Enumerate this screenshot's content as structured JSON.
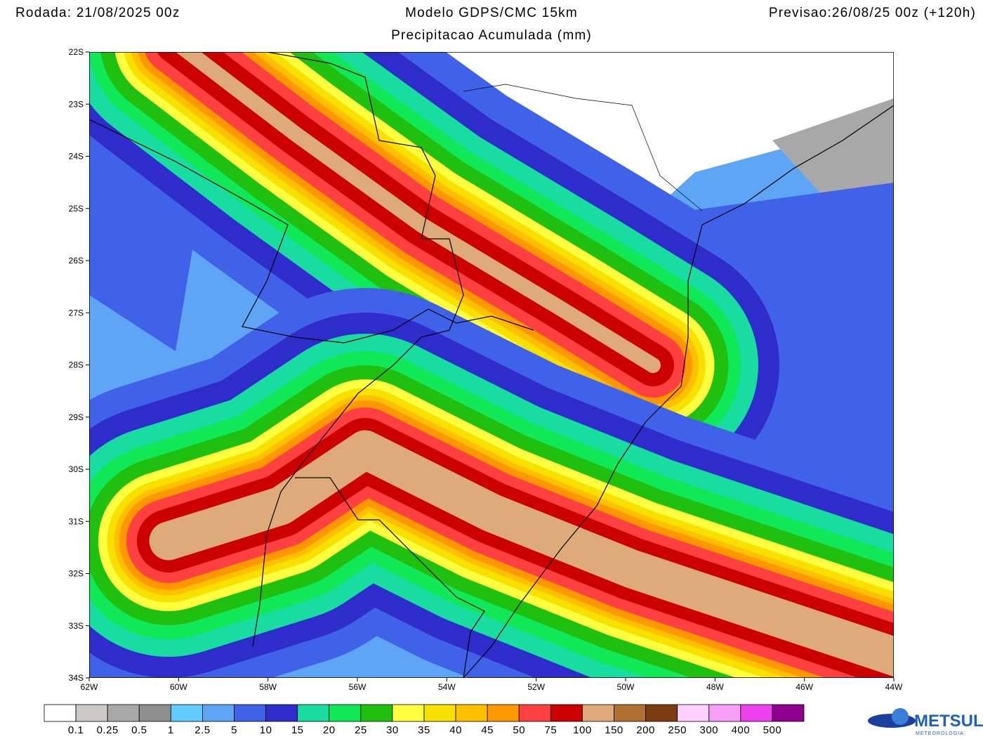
{
  "header": {
    "run": "Rodada: 21/08/2025 00z",
    "model": "Modelo GDPS/CMC 15km",
    "subtitle": "Precipitacao Acumulada (mm)",
    "forecast": "Previsao:26/08/25 00z (+120h)"
  },
  "map": {
    "lat_labels": [
      "22S",
      "23S",
      "24S",
      "25S",
      "26S",
      "27S",
      "28S",
      "29S",
      "30S",
      "31S",
      "32S",
      "33S",
      "34S"
    ],
    "lon_labels": [
      "62W",
      "60W",
      "58W",
      "56W",
      "54W",
      "52W",
      "50W",
      "48W",
      "46W",
      "44W"
    ]
  },
  "colorbar": {
    "colors": [
      "#ffffff",
      "#cdc8c8",
      "#a8a8a8",
      "#8f8f8f",
      "#62cdfc",
      "#5ea6f5",
      "#3f62e8",
      "#2e2ccb",
      "#18dca0",
      "#10e858",
      "#20c010",
      "#ffff40",
      "#f8e000",
      "#ffc000",
      "#ff9800",
      "#ff4040",
      "#cc0000",
      "#deaa7a",
      "#b07030",
      "#7a3c10",
      "#ffd0ff",
      "#f8a0f8",
      "#ee40ee",
      "#900090"
    ],
    "labels": [
      "0.1",
      "0.25",
      "0.5",
      "1",
      "2.5",
      "5",
      "10",
      "15",
      "20",
      "25",
      "30",
      "35",
      "40",
      "45",
      "50",
      "75",
      "100",
      "150",
      "200",
      "250",
      "300",
      "400",
      "500"
    ]
  },
  "logo": {
    "name": "METSUL",
    "tagline": "METEOROLOGIA"
  }
}
